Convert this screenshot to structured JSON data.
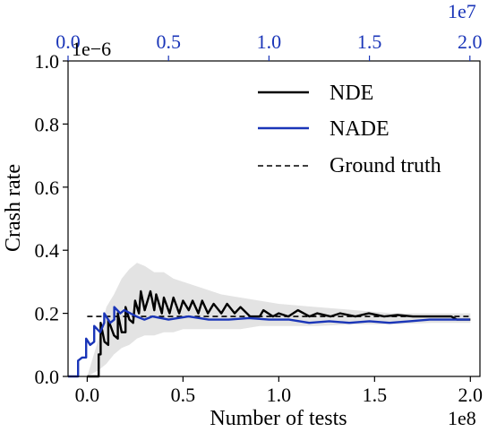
{
  "chart_data": {
    "type": "line",
    "ylabel": "Crash rate",
    "xlabel": "Number of tests",
    "x_multiplier": "1e8",
    "top_x_multiplier": "1e7",
    "y_multiplier": "1e−6",
    "xlim": [
      -0.1,
      2.05
    ],
    "ylim": [
      0,
      1.0
    ],
    "top_xlim": [
      0,
      2.05
    ],
    "x_ticks": [
      {
        "value": 0.0,
        "label": "0.0"
      },
      {
        "value": 0.5,
        "label": "0.5"
      },
      {
        "value": 1.0,
        "label": "1.0"
      },
      {
        "value": 1.5,
        "label": "1.5"
      },
      {
        "value": 2.0,
        "label": "2.0"
      }
    ],
    "top_x_ticks": [
      {
        "value": 0.0,
        "label": "0.0"
      },
      {
        "value": 0.5,
        "label": "0.5"
      },
      {
        "value": 1.0,
        "label": "1.0"
      },
      {
        "value": 1.5,
        "label": "1.5"
      },
      {
        "value": 2.0,
        "label": "2.0"
      }
    ],
    "y_ticks": [
      {
        "value": 0.0,
        "label": "0.0"
      },
      {
        "value": 0.2,
        "label": "0.2"
      },
      {
        "value": 0.4,
        "label": "0.4"
      },
      {
        "value": 0.6,
        "label": "0.6"
      },
      {
        "value": 0.8,
        "label": "0.8"
      },
      {
        "value": 1.0,
        "label": "1.0"
      }
    ],
    "legend_placement": "upper-right",
    "grid": false,
    "colors": {
      "nde": "#000000",
      "nade": "#1a35b8",
      "truth": "#000000",
      "band": "#d9d9d9",
      "top_axis": "#1a35b8"
    },
    "series": [
      {
        "name": "NDE",
        "axis": "bottom",
        "x": [
          0.0,
          0.06,
          0.06,
          0.07,
          0.07,
          0.09,
          0.11,
          0.11,
          0.14,
          0.16,
          0.16,
          0.18,
          0.2,
          0.2,
          0.22,
          0.24,
          0.25,
          0.27,
          0.28,
          0.3,
          0.33,
          0.35,
          0.36,
          0.39,
          0.4,
          0.43,
          0.45,
          0.48,
          0.5,
          0.53,
          0.55,
          0.58,
          0.6,
          0.63,
          0.66,
          0.7,
          0.73,
          0.77,
          0.8,
          0.85,
          0.9,
          0.92,
          0.97,
          1.0,
          1.05,
          1.1,
          1.16,
          1.2,
          1.27,
          1.32,
          1.4,
          1.47,
          1.55,
          1.62,
          1.7,
          1.8,
          1.9,
          1.93,
          2.0
        ],
        "y": [
          0.0,
          0.0,
          0.07,
          0.07,
          0.17,
          0.11,
          0.1,
          0.18,
          0.13,
          0.12,
          0.2,
          0.14,
          0.14,
          0.22,
          0.18,
          0.17,
          0.24,
          0.2,
          0.27,
          0.21,
          0.27,
          0.21,
          0.26,
          0.2,
          0.25,
          0.2,
          0.25,
          0.2,
          0.24,
          0.21,
          0.24,
          0.2,
          0.24,
          0.2,
          0.23,
          0.2,
          0.23,
          0.2,
          0.22,
          0.19,
          0.19,
          0.21,
          0.19,
          0.2,
          0.19,
          0.21,
          0.19,
          0.2,
          0.19,
          0.2,
          0.19,
          0.2,
          0.19,
          0.195,
          0.19,
          0.19,
          0.19,
          0.18,
          0.18
        ]
      },
      {
        "name": "NADE",
        "axis": "top",
        "x": [
          0.0,
          0.05,
          0.05,
          0.07,
          0.09,
          0.09,
          0.11,
          0.13,
          0.13,
          0.16,
          0.18,
          0.18,
          0.21,
          0.23,
          0.23,
          0.26,
          0.28,
          0.31,
          0.34,
          0.38,
          0.42,
          0.5,
          0.6,
          0.7,
          0.8,
          0.9,
          1.0,
          1.1,
          1.2,
          1.3,
          1.4,
          1.5,
          1.6,
          1.7,
          1.8,
          1.9,
          2.0
        ],
        "y": [
          0.0,
          0.0,
          0.05,
          0.06,
          0.06,
          0.12,
          0.1,
          0.11,
          0.16,
          0.14,
          0.17,
          0.2,
          0.17,
          0.18,
          0.22,
          0.2,
          0.21,
          0.2,
          0.19,
          0.18,
          0.19,
          0.18,
          0.19,
          0.18,
          0.18,
          0.185,
          0.18,
          0.18,
          0.17,
          0.175,
          0.17,
          0.175,
          0.17,
          0.175,
          0.18,
          0.18,
          0.18
        ]
      },
      {
        "name": "Ground truth",
        "axis": "bottom",
        "style": "dashed",
        "x": [
          0.0,
          2.0
        ],
        "y": [
          0.19,
          0.19
        ]
      }
    ],
    "confidence_band": {
      "axis": "bottom",
      "x": [
        0.0,
        0.06,
        0.1,
        0.14,
        0.18,
        0.22,
        0.26,
        0.3,
        0.35,
        0.4,
        0.45,
        0.5,
        0.6,
        0.7,
        0.8,
        0.9,
        1.0,
        1.2,
        1.4,
        1.6,
        1.8,
        2.0
      ],
      "upper": [
        0.0,
        0.12,
        0.22,
        0.26,
        0.31,
        0.34,
        0.36,
        0.35,
        0.33,
        0.33,
        0.31,
        0.3,
        0.28,
        0.26,
        0.25,
        0.24,
        0.23,
        0.22,
        0.21,
        0.2,
        0.2,
        0.2
      ],
      "lower": [
        0.0,
        0.02,
        0.04,
        0.07,
        0.09,
        0.1,
        0.12,
        0.13,
        0.13,
        0.14,
        0.14,
        0.15,
        0.15,
        0.15,
        0.15,
        0.16,
        0.16,
        0.16,
        0.165,
        0.165,
        0.17,
        0.17
      ]
    }
  }
}
